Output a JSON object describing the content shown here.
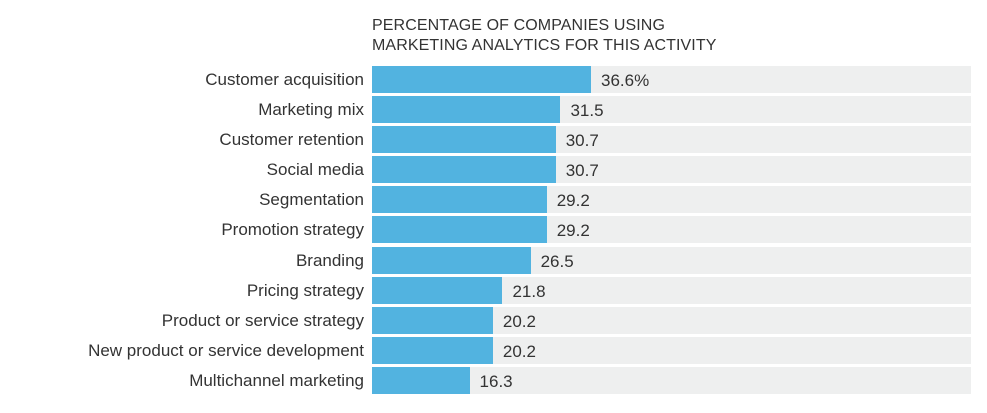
{
  "chart_data": {
    "type": "bar",
    "orientation": "horizontal",
    "title": "PERCENTAGE OF COMPANIES USING MARKETING ANALYTICS FOR THIS ACTIVITY",
    "title_lines": [
      "PERCENTAGE OF COMPANIES USING",
      "MARKETING ANALYTICS FOR THIS ACTIVITY"
    ],
    "xlabel": "",
    "ylabel": "",
    "xlim": [
      0,
      100
    ],
    "grid": false,
    "categories": [
      "Customer acquisition",
      "Marketing mix",
      "Customer retention",
      "Social media",
      "Segmentation",
      "Promotion strategy",
      "Branding",
      "Pricing strategy",
      "Product or service strategy",
      "New product or service development",
      "Multichannel marketing"
    ],
    "values": [
      36.6,
      31.5,
      30.7,
      30.7,
      29.2,
      29.2,
      26.5,
      21.8,
      20.2,
      20.2,
      16.3
    ],
    "value_labels": [
      "36.6%",
      "31.5",
      "30.7",
      "30.7",
      "29.2",
      "29.2",
      "26.5",
      "21.8",
      "20.2",
      "20.2",
      "16.3"
    ],
    "colors": {
      "bar": "#52b3e0",
      "track": "#eeefef",
      "text": "#333333"
    }
  }
}
